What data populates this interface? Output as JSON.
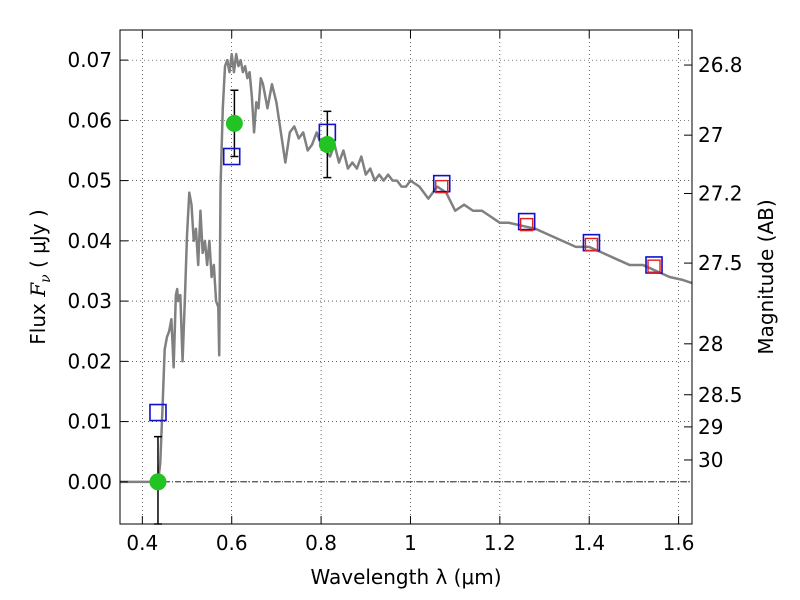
{
  "chart_data": {
    "type": "line",
    "xlabel": "Wavelength  λ (μm)",
    "ylabel": "Flux  F_ν  ( μJy )",
    "y2label": "Magnitude (AB)",
    "xlim": [
      0.35,
      1.63
    ],
    "ylim": [
      -0.007,
      0.075
    ],
    "grid": true,
    "x_ticks": [
      0.4,
      0.6,
      0.8,
      1.0,
      1.2,
      1.4,
      1.6
    ],
    "x_tick_labels": [
      "0.4",
      "0.6",
      "0.8",
      "1",
      "1.2",
      "1.4",
      "1.6"
    ],
    "y_ticks": [
      0.0,
      0.01,
      0.02,
      0.03,
      0.04,
      0.05,
      0.06,
      0.07
    ],
    "y_tick_labels": [
      "0.00",
      "0.01",
      "0.02",
      "0.03",
      "0.04",
      "0.05",
      "0.06",
      "0.07"
    ],
    "y2_ticks_mag": [
      26.8,
      27,
      27.2,
      27.5,
      28,
      28.5,
      29,
      30
    ],
    "y2_tick_labels": [
      "26.8",
      "27",
      "27.2",
      "27.5",
      "28",
      "28.5",
      "29",
      "30"
    ],
    "colors": {
      "model": "#808080",
      "detections": "#22c322",
      "model_photometry": "#1010c8",
      "inner_squares": "#e02020",
      "error_bars": "#000000",
      "zero_line": "#000000"
    },
    "series": [
      {
        "kind": "model-spectrum",
        "x": [
          0.35,
          0.425,
          0.43,
          0.435,
          0.44,
          0.445,
          0.45,
          0.455,
          0.46,
          0.465,
          0.47,
          0.475,
          0.478,
          0.48,
          0.485,
          0.49,
          0.495,
          0.5,
          0.505,
          0.51,
          0.515,
          0.52,
          0.525,
          0.53,
          0.535,
          0.54,
          0.545,
          0.55,
          0.555,
          0.56,
          0.565,
          0.57,
          0.572,
          0.575,
          0.58,
          0.585,
          0.59,
          0.595,
          0.6,
          0.605,
          0.61,
          0.615,
          0.62,
          0.625,
          0.63,
          0.635,
          0.64,
          0.645,
          0.65,
          0.655,
          0.66,
          0.665,
          0.67,
          0.675,
          0.68,
          0.685,
          0.69,
          0.7,
          0.71,
          0.72,
          0.73,
          0.74,
          0.75,
          0.76,
          0.77,
          0.78,
          0.79,
          0.8,
          0.81,
          0.82,
          0.83,
          0.84,
          0.85,
          0.86,
          0.87,
          0.88,
          0.89,
          0.9,
          0.91,
          0.92,
          0.93,
          0.94,
          0.95,
          0.96,
          0.97,
          0.98,
          0.99,
          1.0,
          1.02,
          1.04,
          1.06,
          1.08,
          1.1,
          1.12,
          1.14,
          1.16,
          1.18,
          1.2,
          1.22,
          1.25,
          1.28,
          1.31,
          1.34,
          1.37,
          1.4,
          1.43,
          1.46,
          1.49,
          1.52,
          1.55,
          1.58,
          1.61,
          1.63
        ],
        "values": [
          0.0,
          0.0,
          0.0,
          0.0,
          0.003,
          0.012,
          0.022,
          0.024,
          0.025,
          0.027,
          0.019,
          0.031,
          0.032,
          0.03,
          0.031,
          0.02,
          0.03,
          0.041,
          0.048,
          0.046,
          0.04,
          0.042,
          0.036,
          0.045,
          0.038,
          0.04,
          0.036,
          0.04,
          0.034,
          0.036,
          0.03,
          0.029,
          0.021,
          0.049,
          0.062,
          0.069,
          0.07,
          0.068,
          0.071,
          0.068,
          0.071,
          0.069,
          0.07,
          0.068,
          0.069,
          0.067,
          0.068,
          0.064,
          0.058,
          0.063,
          0.062,
          0.067,
          0.066,
          0.064,
          0.062,
          0.064,
          0.066,
          0.063,
          0.058,
          0.053,
          0.058,
          0.059,
          0.057,
          0.058,
          0.055,
          0.056,
          0.058,
          0.056,
          0.055,
          0.054,
          0.056,
          0.053,
          0.055,
          0.052,
          0.053,
          0.052,
          0.054,
          0.051,
          0.052,
          0.05,
          0.051,
          0.05,
          0.051,
          0.05,
          0.05,
          0.049,
          0.049,
          0.05,
          0.049,
          0.047,
          0.049,
          0.048,
          0.045,
          0.046,
          0.045,
          0.045,
          0.044,
          0.043,
          0.043,
          0.0425,
          0.042,
          0.041,
          0.04,
          0.039,
          0.039,
          0.038,
          0.037,
          0.036,
          0.036,
          0.035,
          0.034,
          0.0335,
          0.033
        ]
      },
      {
        "kind": "observed-photometry",
        "x": [
          0.435,
          0.606,
          0.814
        ],
        "values": [
          0.0,
          0.0595,
          0.056
        ],
        "err_lo": [
          -0.007,
          0.054,
          0.0505
        ],
        "err_hi": [
          0.0075,
          0.065,
          0.0615
        ]
      },
      {
        "kind": "model-photometry-squares",
        "x": [
          0.435,
          0.6,
          0.814,
          1.07,
          1.26,
          1.405,
          1.545
        ],
        "values": [
          0.0115,
          0.054,
          0.058,
          0.0495,
          0.0432,
          0.0397,
          0.036
        ]
      },
      {
        "kind": "observed-squares-red",
        "x": [
          1.07,
          1.26,
          1.405,
          1.545
        ],
        "values": [
          0.049,
          0.0427,
          0.0394,
          0.0358
        ]
      }
    ]
  }
}
